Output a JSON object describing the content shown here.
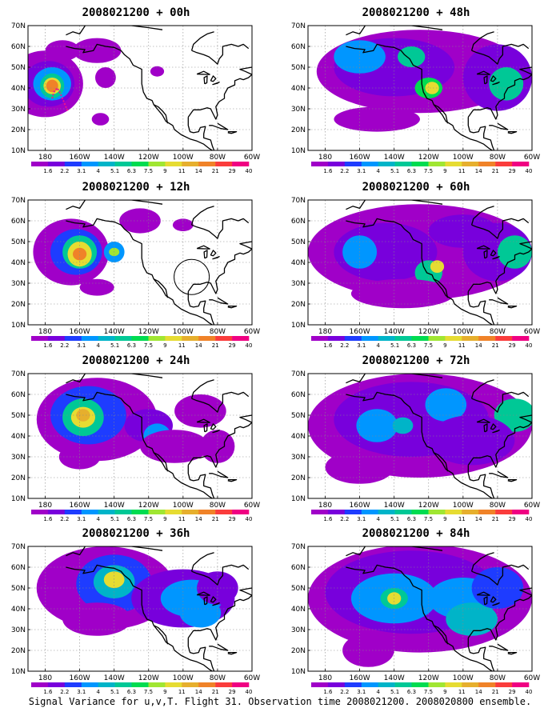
{
  "caption": "Signal Variance for u,v,T. Flight 31. Observation time 2008021200. 2008020800 ensemble.",
  "lat_labels": [
    "70N",
    "60N",
    "50N",
    "40N",
    "30N",
    "20N",
    "10N"
  ],
  "lon_labels": [
    "180",
    "160W",
    "140W",
    "120W",
    "100W",
    "80W",
    "60W"
  ],
  "colorbar": {
    "labels": [
      "1.6",
      "2.2",
      "3.1",
      "4",
      "5.1",
      "6.3",
      "7.5",
      "9",
      "11",
      "14",
      "21",
      "29",
      "40"
    ],
    "colors": [
      "#a000c8",
      "#7800dc",
      "#1e3cff",
      "#0096ff",
      "#00b4c8",
      "#00c896",
      "#00dc50",
      "#a0e632",
      "#e6dc32",
      "#e6af2d",
      "#f08228",
      "#fa3c3c",
      "#f00082"
    ]
  },
  "panels": [
    {
      "id": "p00",
      "title": "2008021200 + 00h"
    },
    {
      "id": "p48",
      "title": "2008021200 + 48h"
    },
    {
      "id": "p12",
      "title": "2008021200 + 12h"
    },
    {
      "id": "p60",
      "title": "2008021200 + 60h"
    },
    {
      "id": "p24",
      "title": "2008021200 + 24h"
    },
    {
      "id": "p72",
      "title": "2008021200 + 72h"
    },
    {
      "id": "p36",
      "title": "2008021200 + 36h"
    },
    {
      "id": "p84",
      "title": "2008021200 + 84h"
    }
  ]
}
